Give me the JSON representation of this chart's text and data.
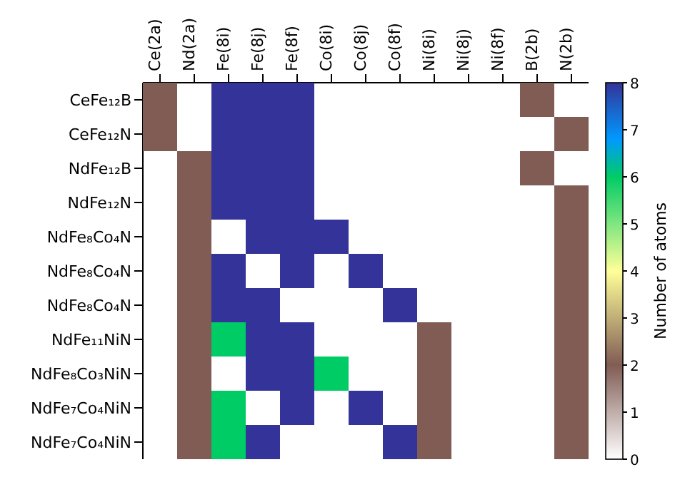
{
  "chart_data": {
    "type": "heatmap",
    "categories": [
      "Ce(2a)",
      "Nd(2a)",
      "Fe(8i)",
      "Fe(8j)",
      "Fe(8f)",
      "Co(8i)",
      "Co(8j)",
      "Co(8f)",
      "Ni(8i)",
      "Ni(8j)",
      "Ni(8f)",
      "B(2b)",
      "N(2b)"
    ],
    "y_categories": [
      "CeFe₁₂B",
      "CeFe₁₂N",
      "NdFe₁₂B",
      "NdFe₁₂N",
      "NdFe₈Co₄N",
      "NdFe₈Co₄N",
      "NdFe₈Co₄N",
      "NdFe₁₁NiN",
      "NdFe₈Co₃NiN",
      "NdFe₇Co₄NiN",
      "NdFe₇Co₄NiN"
    ],
    "cells": [
      [
        2,
        null,
        8,
        8,
        8,
        null,
        null,
        null,
        null,
        null,
        null,
        2,
        null
      ],
      [
        2,
        null,
        8,
        8,
        8,
        null,
        null,
        null,
        null,
        null,
        null,
        null,
        2
      ],
      [
        null,
        2,
        8,
        8,
        8,
        null,
        null,
        null,
        null,
        null,
        null,
        2,
        null
      ],
      [
        null,
        2,
        8,
        8,
        8,
        null,
        null,
        null,
        null,
        null,
        null,
        null,
        2
      ],
      [
        null,
        2,
        null,
        8,
        8,
        8,
        null,
        null,
        null,
        null,
        null,
        null,
        2
      ],
      [
        null,
        2,
        8,
        null,
        8,
        null,
        8,
        null,
        null,
        null,
        null,
        null,
        2
      ],
      [
        null,
        2,
        8,
        8,
        null,
        null,
        null,
        8,
        null,
        null,
        null,
        null,
        2
      ],
      [
        null,
        2,
        6,
        8,
        8,
        null,
        null,
        null,
        2,
        null,
        null,
        null,
        2
      ],
      [
        null,
        2,
        null,
        8,
        8,
        6,
        null,
        null,
        2,
        null,
        null,
        null,
        2
      ],
      [
        null,
        2,
        6,
        null,
        8,
        null,
        8,
        null,
        2,
        null,
        null,
        null,
        2
      ],
      [
        null,
        2,
        6,
        8,
        null,
        null,
        null,
        8,
        2,
        null,
        null,
        null,
        2
      ]
    ],
    "clim": [
      0,
      8
    ],
    "cticks": [
      0,
      1,
      2,
      3,
      4,
      5,
      6,
      7,
      8
    ],
    "clabel": "Number of atoms"
  }
}
